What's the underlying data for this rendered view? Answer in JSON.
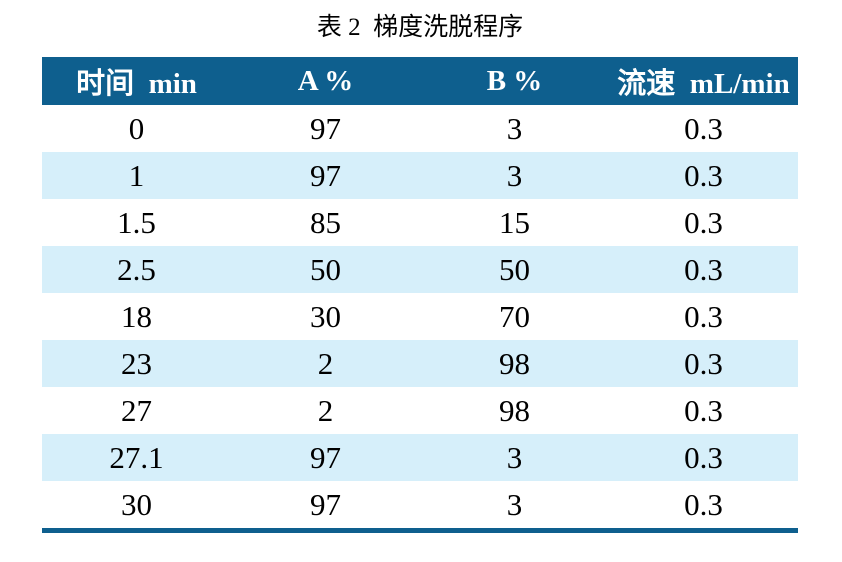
{
  "page": {
    "title": "表 2  梯度洗脱程序"
  },
  "table": {
    "columns": [
      "时间  min",
      "A %",
      "B %",
      "流速  mL/min"
    ],
    "rows": [
      [
        "0",
        "97",
        "3",
        "0.3"
      ],
      [
        "1",
        "97",
        "3",
        "0.3"
      ],
      [
        "1.5",
        "85",
        "15",
        "0.3"
      ],
      [
        "2.5",
        "50",
        "50",
        "0.3"
      ],
      [
        "18",
        "30",
        "70",
        "0.3"
      ],
      [
        "23",
        "2",
        "98",
        "0.3"
      ],
      [
        "27",
        "2",
        "98",
        "0.3"
      ],
      [
        "27.1",
        "97",
        "3",
        "0.3"
      ],
      [
        "30",
        "97",
        "3",
        "0.3"
      ]
    ]
  },
  "colors": {
    "header_bg": "#0e5f8e",
    "header_text": "#ffffff",
    "row_alt_bg": "#d6effa",
    "bottom_rule": "#0e5f8e"
  }
}
